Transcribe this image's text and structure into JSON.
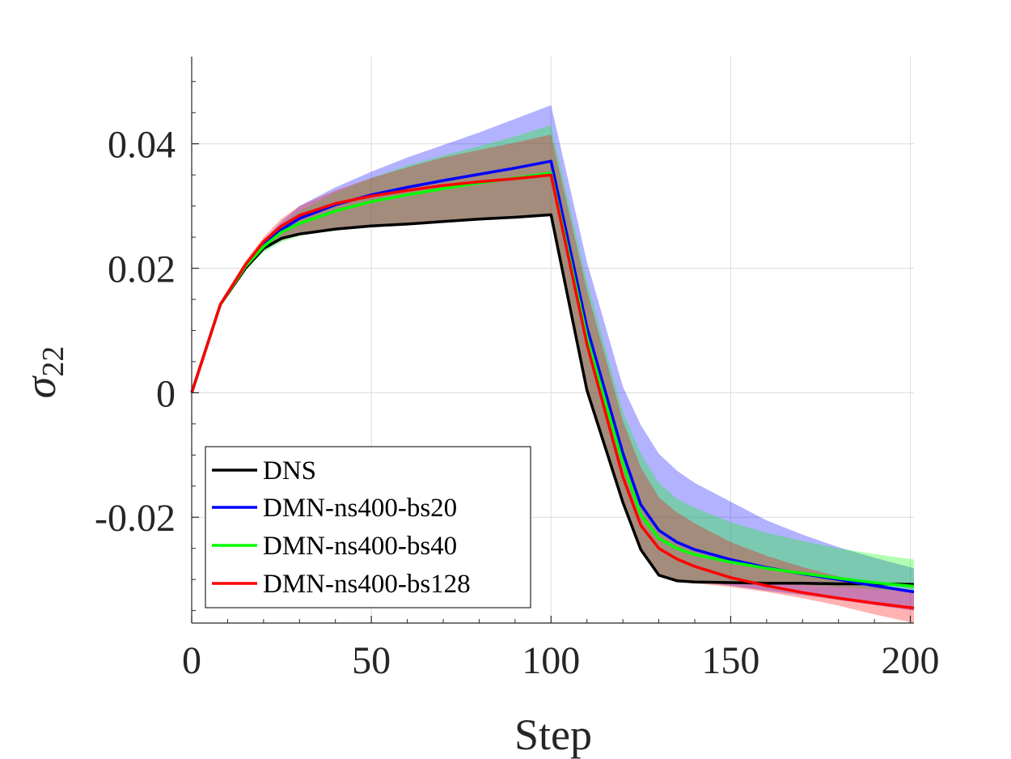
{
  "chart_data": {
    "type": "line",
    "xlabel": "Step",
    "ylabel": "σ",
    "ylabel_subscript": "22",
    "xlim": [
      0,
      201
    ],
    "ylim": [
      -0.037,
      0.054
    ],
    "xticks": [
      0,
      50,
      100,
      150,
      200
    ],
    "xtick_labels": [
      "0",
      "50",
      "100",
      "150",
      "200"
    ],
    "yticks": [
      -0.02,
      0,
      0.02,
      0.04
    ],
    "ytick_labels": [
      "-0.02",
      "0",
      "0.02",
      "0.04"
    ],
    "grid": true,
    "legend_position": "bottom-left",
    "series": [
      {
        "name": "DNS",
        "color": "#000000",
        "x": [
          0,
          8,
          15,
          20,
          25,
          30,
          40,
          50,
          60,
          70,
          80,
          90,
          100,
          110,
          120,
          125,
          130,
          135,
          140,
          150,
          160,
          170,
          180,
          190,
          201
        ],
        "y": [
          0,
          0.0142,
          0.02,
          0.0232,
          0.0248,
          0.0255,
          0.0263,
          0.0268,
          0.0271,
          0.0275,
          0.0279,
          0.0282,
          0.0286,
          0.0004,
          -0.0176,
          -0.0252,
          -0.0293,
          -0.0302,
          -0.0304,
          -0.0305,
          -0.0306,
          -0.0306,
          -0.0307,
          -0.0307,
          -0.0308
        ]
      },
      {
        "name": "DMN-ns400-bs20",
        "color": "#0000ff",
        "x": [
          0,
          8,
          15,
          20,
          25,
          30,
          40,
          50,
          60,
          70,
          80,
          90,
          100,
          110,
          120,
          125,
          130,
          135,
          140,
          150,
          160,
          170,
          180,
          190,
          201
        ],
        "y": [
          0,
          0.0142,
          0.0205,
          0.0238,
          0.0262,
          0.028,
          0.0302,
          0.0318,
          0.033,
          0.0341,
          0.0351,
          0.0361,
          0.0372,
          0.0105,
          -0.0097,
          -0.018,
          -0.0221,
          -0.024,
          -0.0252,
          -0.0268,
          -0.0281,
          -0.0291,
          -0.03,
          -0.031,
          -0.032
        ]
      },
      {
        "name": "DMN-ns400-bs40",
        "color": "#00ff00",
        "x": [
          0,
          8,
          15,
          20,
          25,
          30,
          40,
          50,
          60,
          70,
          80,
          90,
          100,
          110,
          120,
          125,
          130,
          135,
          140,
          150,
          160,
          170,
          180,
          190,
          201
        ],
        "y": [
          0,
          0.0142,
          0.0203,
          0.0235,
          0.0258,
          0.0272,
          0.0292,
          0.0307,
          0.0318,
          0.0328,
          0.0337,
          0.0345,
          0.0353,
          0.0089,
          -0.0113,
          -0.0196,
          -0.0234,
          -0.025,
          -0.026,
          -0.0272,
          -0.0282,
          -0.029,
          -0.0298,
          -0.0305,
          -0.0311
        ]
      },
      {
        "name": "DMN-ns400-bs128",
        "color": "#ff0000",
        "x": [
          0,
          8,
          15,
          20,
          25,
          30,
          40,
          50,
          60,
          70,
          80,
          90,
          100,
          110,
          120,
          125,
          130,
          135,
          140,
          150,
          160,
          170,
          180,
          190,
          201
        ],
        "y": [
          0,
          0.0142,
          0.0206,
          0.0243,
          0.0268,
          0.0285,
          0.0304,
          0.0316,
          0.0325,
          0.0333,
          0.0339,
          0.0344,
          0.035,
          0.0078,
          -0.0135,
          -0.0213,
          -0.025,
          -0.0267,
          -0.0279,
          -0.0297,
          -0.031,
          -0.0321,
          -0.033,
          -0.0338,
          -0.0346
        ]
      }
    ],
    "bands": [
      {
        "series": "DMN-ns400-bs20",
        "color": "#0000ff",
        "x": [
          0,
          8,
          15,
          20,
          25,
          30,
          40,
          50,
          60,
          70,
          80,
          90,
          100,
          110,
          120,
          125,
          130,
          135,
          140,
          150,
          160,
          170,
          180,
          190,
          201
        ],
        "upper": [
          0,
          0.0145,
          0.021,
          0.0245,
          0.0275,
          0.03,
          0.033,
          0.0355,
          0.0378,
          0.0398,
          0.0418,
          0.044,
          0.0462,
          0.021,
          0.001,
          -0.0052,
          -0.0098,
          -0.0125,
          -0.0145,
          -0.0175,
          -0.0205,
          -0.0228,
          -0.0248,
          -0.0265,
          -0.0282
        ],
        "lower": [
          0,
          0.014,
          0.0198,
          0.0228,
          0.0245,
          0.0255,
          0.0263,
          0.0268,
          0.0272,
          0.0276,
          0.028,
          0.0283,
          0.0287,
          0.0005,
          -0.0175,
          -0.025,
          -0.029,
          -0.03,
          -0.0303,
          -0.031,
          -0.0318,
          -0.0325,
          -0.0333,
          -0.0341,
          -0.035
        ]
      },
      {
        "series": "DMN-ns400-bs40",
        "color": "#00ff00",
        "x": [
          0,
          8,
          15,
          20,
          25,
          30,
          40,
          50,
          60,
          70,
          80,
          90,
          100,
          110,
          120,
          125,
          130,
          135,
          140,
          150,
          160,
          170,
          180,
          190,
          201
        ],
        "upper": [
          0,
          0.0145,
          0.0208,
          0.0242,
          0.027,
          0.0292,
          0.0322,
          0.0345,
          0.0365,
          0.0381,
          0.0396,
          0.0412,
          0.043,
          0.018,
          -0.003,
          -0.0098,
          -0.0145,
          -0.017,
          -0.0185,
          -0.0208,
          -0.0225,
          -0.0238,
          -0.025,
          -0.0259,
          -0.0268
        ],
        "lower": [
          0,
          0.014,
          0.0197,
          0.0226,
          0.0242,
          0.0252,
          0.0261,
          0.0267,
          0.0271,
          0.0275,
          0.0279,
          0.0282,
          0.0286,
          0.0005,
          -0.0175,
          -0.025,
          -0.0291,
          -0.03,
          -0.0303,
          -0.0305,
          -0.0307,
          -0.0309,
          -0.0312,
          -0.0316,
          -0.032
        ]
      },
      {
        "series": "DMN-ns400-bs128",
        "color": "#ff0000",
        "x": [
          0,
          8,
          15,
          20,
          25,
          30,
          40,
          50,
          60,
          70,
          80,
          90,
          100,
          110,
          120,
          125,
          130,
          135,
          140,
          150,
          160,
          170,
          180,
          190,
          201
        ],
        "upper": [
          0,
          0.0145,
          0.0212,
          0.025,
          0.028,
          0.03,
          0.0325,
          0.0345,
          0.0362,
          0.0378,
          0.039,
          0.0402,
          0.0415,
          0.0165,
          -0.0045,
          -0.012,
          -0.0168,
          -0.0192,
          -0.021,
          -0.024,
          -0.0262,
          -0.028,
          -0.0295,
          -0.0308,
          -0.032
        ],
        "lower": [
          0,
          0.014,
          0.02,
          0.0232,
          0.0247,
          0.0255,
          0.0263,
          0.0268,
          0.0272,
          0.0276,
          0.028,
          0.0283,
          0.0287,
          0.0004,
          -0.0176,
          -0.0252,
          -0.0293,
          -0.0303,
          -0.0306,
          -0.0312,
          -0.032,
          -0.033,
          -0.0342,
          -0.0356,
          -0.037
        ]
      }
    ]
  }
}
